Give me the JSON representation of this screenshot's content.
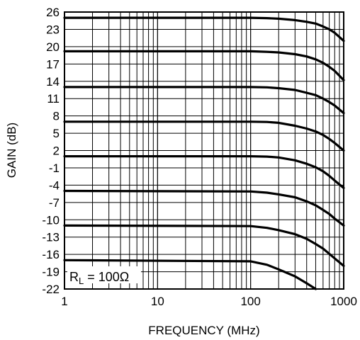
{
  "chart_data": {
    "type": "line",
    "title": "",
    "xlabel": "FREQUENCY (MHz)",
    "ylabel": "GAIN (dB)",
    "xscale": "log",
    "xlim": [
      1,
      1000
    ],
    "ylim": [
      -22,
      26
    ],
    "x_ticks": [
      "1",
      "10",
      "100",
      "1000"
    ],
    "y_ticks": [
      "26",
      "23",
      "20",
      "17",
      "14",
      "11",
      "8",
      "5",
      "2",
      "-1",
      "-4",
      "-7",
      "-10",
      "-13",
      "-16",
      "-19",
      "-22"
    ],
    "grid": true,
    "annotation": {
      "main": "R",
      "sub": "L",
      "rest": " = 100Ω"
    },
    "line_color": "#000000",
    "series": [
      {
        "x": [
          1,
          100,
          150,
          200,
          300,
          400,
          500,
          600,
          700,
          800,
          1000
        ],
        "y": [
          25,
          25,
          24.95,
          24.85,
          24.6,
          24.3,
          24,
          23.5,
          23,
          22.4,
          21
        ]
      },
      {
        "x": [
          1,
          100,
          150,
          200,
          300,
          400,
          500,
          600,
          700,
          800,
          1000
        ],
        "y": [
          19.2,
          19.2,
          19.1,
          19,
          18.7,
          18.3,
          17.8,
          17.2,
          16.5,
          15.8,
          14.2
        ]
      },
      {
        "x": [
          1,
          100,
          150,
          200,
          300,
          400,
          500,
          600,
          700,
          800,
          1000
        ],
        "y": [
          13,
          13,
          12.95,
          12.8,
          12.5,
          12,
          11.6,
          11,
          10.4,
          9.8,
          8.5
        ]
      },
      {
        "x": [
          1,
          100,
          150,
          200,
          300,
          400,
          500,
          600,
          700,
          800,
          1000
        ],
        "y": [
          7,
          7,
          6.95,
          6.8,
          6.3,
          5.8,
          5.3,
          4.7,
          4,
          3.3,
          2
        ]
      },
      {
        "x": [
          1,
          100,
          150,
          200,
          300,
          400,
          500,
          600,
          700,
          800,
          1000
        ],
        "y": [
          1,
          1,
          0.95,
          0.8,
          0.3,
          -0.3,
          -0.9,
          -1.6,
          -2.4,
          -3.2,
          -4.5
        ]
      },
      {
        "x": [
          1,
          100,
          150,
          200,
          300,
          400,
          500,
          600,
          700,
          800,
          1000
        ],
        "y": [
          -5,
          -5.1,
          -5.3,
          -5.6,
          -6.1,
          -6.8,
          -7.5,
          -8.3,
          -9,
          -9.8,
          -11
        ]
      },
      {
        "x": [
          1,
          100,
          150,
          200,
          300,
          400,
          500,
          600,
          700,
          800,
          1000
        ],
        "y": [
          -11,
          -11.1,
          -11.4,
          -11.8,
          -12.5,
          -13.3,
          -14.2,
          -15,
          -15.9,
          -16.7,
          -18
        ]
      },
      {
        "x": [
          1,
          100,
          150,
          200,
          300,
          400,
          500
        ],
        "y": [
          -17,
          -17.2,
          -17.8,
          -18.6,
          -19.8,
          -21,
          -22
        ]
      }
    ]
  }
}
